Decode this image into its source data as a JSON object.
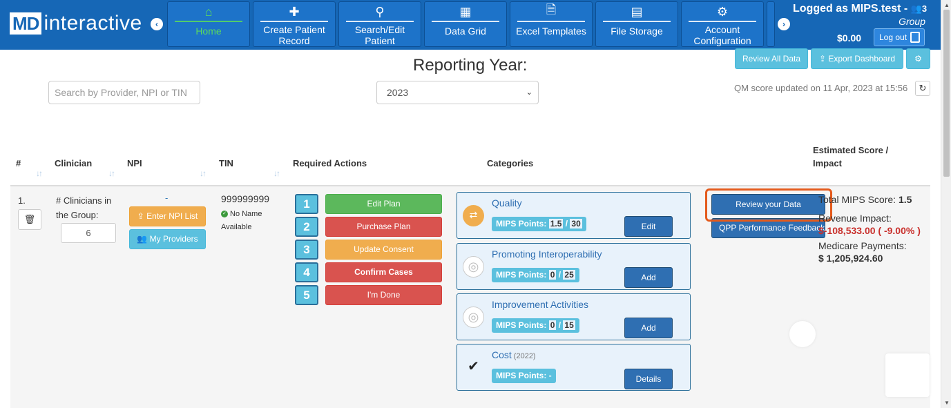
{
  "brand": {
    "md": "MD",
    "rest": "interactive"
  },
  "nav": {
    "items": [
      {
        "label": "Home",
        "icon": "home-icon",
        "glyph": "⌂"
      },
      {
        "label": "Create Patient Record",
        "icon": "plus-icon",
        "glyph": "✚"
      },
      {
        "label": "Search/Edit Patient",
        "icon": "search-icon",
        "glyph": "⚲"
      },
      {
        "label": "Data Grid",
        "icon": "grid-icon",
        "glyph": "▦"
      },
      {
        "label": "Excel Templates",
        "icon": "excel-file-icon",
        "glyph": "🗎"
      },
      {
        "label": "File Storage",
        "icon": "archive-icon",
        "glyph": "▤"
      },
      {
        "label": "Account Configuration",
        "icon": "gears-icon",
        "glyph": "⚙"
      }
    ],
    "prev_glyph": "‹",
    "next_glyph": "›"
  },
  "user": {
    "logged_as": "Logged as MIPS.test -",
    "group": "Group",
    "balance": "$0.00",
    "logout": "Log out"
  },
  "toolbar": {
    "review_all": "Review All Data",
    "export": "Export Dashboard",
    "settings_glyph": "⚙"
  },
  "reporting_year": {
    "title": "Reporting Year:",
    "selected": "2023"
  },
  "search": {
    "placeholder": "Search by Provider, NPI or TIN"
  },
  "qm_updated": "QM score updated on 11 Apr, 2023 at 15:56",
  "table": {
    "headers": {
      "num": "#",
      "clinician": "Clinician",
      "npi": "NPI",
      "tin": "TIN",
      "required_actions": "Required Actions",
      "categories": "Categories",
      "estimated_1": "Estimated Score /",
      "estimated_2": "Impact"
    },
    "row": {
      "num": "1.",
      "clinicians_label": "# Clinicians in the Group:",
      "clinicians_count": "6",
      "npi_value": "-",
      "enter_npi": "Enter NPI List",
      "my_providers": "My Providers",
      "tin": "999999999",
      "tin_note": "No Name Available",
      "steps": [
        {
          "num": "1",
          "label": "Edit Plan",
          "color": "#5cb85c"
        },
        {
          "num": "2",
          "label": "Purchase Plan",
          "color": "#d9534f"
        },
        {
          "num": "3",
          "label": "Update Consent",
          "color": "#f0ad4e"
        },
        {
          "num": "4",
          "label": "Confirm Cases",
          "color": "#d9534f"
        },
        {
          "num": "5",
          "label": "I'm Done",
          "color": "#d9534f"
        }
      ],
      "categories": [
        {
          "title": "Quality",
          "year": "",
          "points_label": "MIPS Points:",
          "points": "1.5",
          "max": "30",
          "action": "Edit",
          "icon": "transfer-icon"
        },
        {
          "title": "Promoting Interoperability",
          "year": "",
          "points_label": "MIPS Points:",
          "points": "0",
          "max": "25",
          "action": "Add",
          "icon": "target-icon"
        },
        {
          "title": "Improvement Activities",
          "year": "",
          "points_label": "MIPS Points:",
          "points": "0",
          "max": "15",
          "action": "Add",
          "icon": "target-icon"
        },
        {
          "title": "Cost",
          "year": "(2022)",
          "points_label": "MIPS Points: -",
          "points": "",
          "max": "",
          "action": "Details",
          "icon": "check-icon"
        }
      ],
      "review_data": "Review your Data",
      "qpp_feedback": "QPP Performance Feedback",
      "total_label": "Total MIPS Score:",
      "total_value": "1.5",
      "revenue_label": "Revenue Impact:",
      "revenue_value": "$-108,533.00 ( -9.00% )",
      "medicare_label": "Medicare Payments:",
      "medicare_value": "$ 1,205,924.60"
    }
  }
}
